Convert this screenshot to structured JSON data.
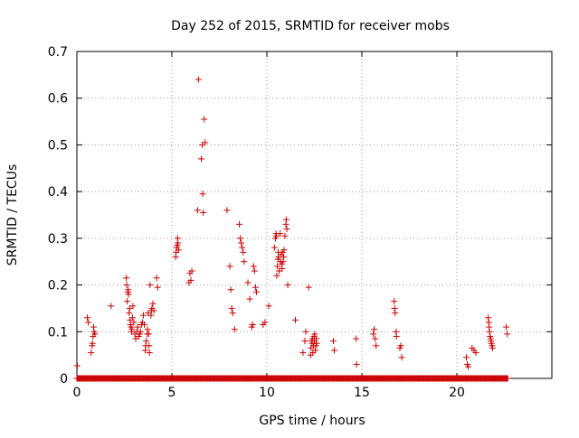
{
  "chart_data": {
    "type": "scatter",
    "title": "Day 252 of 2015, SRMTID for receiver mobs",
    "xlabel": "GPS time / hours",
    "ylabel": "SRMTID / TECUs",
    "xlim": [
      0,
      25
    ],
    "ylim": [
      0,
      0.7
    ],
    "grid": true,
    "marker": "plus",
    "marker_color": "#cc0000",
    "xticks": [
      0,
      5,
      10,
      15,
      20
    ],
    "xtick_labels": [
      "0",
      "5",
      "10",
      "15",
      "20"
    ],
    "yticks": [
      0,
      0.1,
      0.2,
      0.3,
      0.4,
      0.5,
      0.6,
      0.7
    ],
    "ytick_labels": [
      "0",
      "0.1",
      "0.2",
      "0.3",
      "0.4",
      "0.5",
      "0.6",
      "0.7"
    ],
    "baseline": {
      "x_start": 0.0,
      "x_end": 22.7,
      "step": 0.04,
      "y": 0.0
    },
    "points": [
      [
        0.02,
        0.027
      ],
      [
        0.55,
        0.13
      ],
      [
        0.6,
        0.12
      ],
      [
        0.75,
        0.055
      ],
      [
        0.8,
        0.07
      ],
      [
        0.82,
        0.075
      ],
      [
        0.85,
        0.09
      ],
      [
        0.88,
        0.11
      ],
      [
        0.9,
        0.1
      ],
      [
        0.95,
        0.095
      ],
      [
        1.8,
        0.155
      ],
      [
        2.6,
        0.215
      ],
      [
        2.62,
        0.2
      ],
      [
        2.65,
        0.165
      ],
      [
        2.68,
        0.185
      ],
      [
        2.7,
        0.19
      ],
      [
        2.72,
        0.18
      ],
      [
        2.75,
        0.14
      ],
      [
        2.78,
        0.15
      ],
      [
        2.8,
        0.125
      ],
      [
        2.82,
        0.115
      ],
      [
        2.85,
        0.11
      ],
      [
        2.88,
        0.1
      ],
      [
        2.9,
        0.105
      ],
      [
        2.93,
        0.13
      ],
      [
        2.95,
        0.155
      ],
      [
        3.0,
        0.12
      ],
      [
        3.05,
        0.095
      ],
      [
        3.1,
        0.085
      ],
      [
        3.15,
        0.1
      ],
      [
        3.2,
        0.11
      ],
      [
        3.25,
        0.09
      ],
      [
        3.3,
        0.095
      ],
      [
        3.35,
        0.1
      ],
      [
        3.4,
        0.115
      ],
      [
        3.45,
        0.12
      ],
      [
        3.5,
        0.135
      ],
      [
        3.55,
        0.115
      ],
      [
        3.6,
        0.06
      ],
      [
        3.62,
        0.07
      ],
      [
        3.65,
        0.08
      ],
      [
        3.7,
        0.095
      ],
      [
        3.72,
        0.105
      ],
      [
        3.75,
        0.14
      ],
      [
        3.78,
        0.095
      ],
      [
        3.8,
        0.07
      ],
      [
        3.82,
        0.055
      ],
      [
        3.85,
        0.2
      ],
      [
        3.9,
        0.135
      ],
      [
        3.92,
        0.145
      ],
      [
        3.95,
        0.15
      ],
      [
        4.0,
        0.16
      ],
      [
        4.05,
        0.145
      ],
      [
        4.2,
        0.215
      ],
      [
        4.25,
        0.195
      ],
      [
        5.2,
        0.26
      ],
      [
        5.22,
        0.27
      ],
      [
        5.25,
        0.28
      ],
      [
        5.28,
        0.285
      ],
      [
        5.3,
        0.3
      ],
      [
        5.32,
        0.29
      ],
      [
        5.35,
        0.275
      ],
      [
        5.9,
        0.205
      ],
      [
        5.95,
        0.225
      ],
      [
        6.0,
        0.21
      ],
      [
        6.05,
        0.23
      ],
      [
        6.35,
        0.36
      ],
      [
        6.4,
        0.64
      ],
      [
        6.55,
        0.47
      ],
      [
        6.6,
        0.5
      ],
      [
        6.62,
        0.395
      ],
      [
        6.65,
        0.355
      ],
      [
        6.7,
        0.555
      ],
      [
        6.75,
        0.505
      ],
      [
        7.9,
        0.36
      ],
      [
        8.05,
        0.24
      ],
      [
        8.1,
        0.19
      ],
      [
        8.15,
        0.15
      ],
      [
        8.2,
        0.14
      ],
      [
        8.3,
        0.105
      ],
      [
        8.55,
        0.33
      ],
      [
        8.6,
        0.3
      ],
      [
        8.65,
        0.29
      ],
      [
        8.7,
        0.28
      ],
      [
        8.75,
        0.27
      ],
      [
        8.8,
        0.25
      ],
      [
        9.0,
        0.205
      ],
      [
        9.1,
        0.17
      ],
      [
        9.2,
        0.11
      ],
      [
        9.25,
        0.115
      ],
      [
        9.3,
        0.24
      ],
      [
        9.35,
        0.23
      ],
      [
        9.4,
        0.195
      ],
      [
        9.45,
        0.185
      ],
      [
        9.8,
        0.115
      ],
      [
        9.9,
        0.12
      ],
      [
        10.1,
        0.155
      ],
      [
        10.4,
        0.28
      ],
      [
        10.45,
        0.3
      ],
      [
        10.48,
        0.31
      ],
      [
        10.5,
        0.305
      ],
      [
        10.52,
        0.22
      ],
      [
        10.55,
        0.24
      ],
      [
        10.58,
        0.255
      ],
      [
        10.6,
        0.27
      ],
      [
        10.62,
        0.26
      ],
      [
        10.65,
        0.23
      ],
      [
        10.7,
        0.31
      ],
      [
        10.72,
        0.25
      ],
      [
        10.75,
        0.265
      ],
      [
        10.78,
        0.245
      ],
      [
        10.8,
        0.235
      ],
      [
        10.82,
        0.27
      ],
      [
        10.85,
        0.25
      ],
      [
        10.88,
        0.26
      ],
      [
        10.9,
        0.275
      ],
      [
        10.95,
        0.305
      ],
      [
        11.0,
        0.33
      ],
      [
        11.02,
        0.34
      ],
      [
        11.05,
        0.32
      ],
      [
        11.1,
        0.2
      ],
      [
        11.5,
        0.125
      ],
      [
        11.9,
        0.055
      ],
      [
        12.0,
        0.08
      ],
      [
        12.05,
        0.1
      ],
      [
        12.2,
        0.195
      ],
      [
        12.3,
        0.05
      ],
      [
        12.32,
        0.065
      ],
      [
        12.35,
        0.08
      ],
      [
        12.38,
        0.075
      ],
      [
        12.4,
        0.085
      ],
      [
        12.42,
        0.055
      ],
      [
        12.45,
        0.07
      ],
      [
        12.48,
        0.09
      ],
      [
        12.5,
        0.08
      ],
      [
        12.52,
        0.095
      ],
      [
        12.55,
        0.06
      ],
      [
        12.58,
        0.07
      ],
      [
        12.6,
        0.085
      ],
      [
        12.62,
        0.075
      ],
      [
        13.5,
        0.08
      ],
      [
        13.55,
        0.06
      ],
      [
        14.7,
        0.085
      ],
      [
        14.72,
        0.03
      ],
      [
        15.6,
        0.095
      ],
      [
        15.65,
        0.105
      ],
      [
        15.7,
        0.085
      ],
      [
        15.75,
        0.07
      ],
      [
        16.7,
        0.165
      ],
      [
        16.72,
        0.15
      ],
      [
        16.75,
        0.14
      ],
      [
        16.8,
        0.1
      ],
      [
        16.82,
        0.09
      ],
      [
        17.0,
        0.065
      ],
      [
        17.05,
        0.07
      ],
      [
        17.1,
        0.045
      ],
      [
        20.5,
        0.045
      ],
      [
        20.55,
        0.03
      ],
      [
        20.6,
        0.025
      ],
      [
        20.8,
        0.065
      ],
      [
        20.9,
        0.06
      ],
      [
        21.0,
        0.055
      ],
      [
        21.65,
        0.13
      ],
      [
        21.68,
        0.12
      ],
      [
        21.7,
        0.11
      ],
      [
        21.72,
        0.1
      ],
      [
        21.75,
        0.09
      ],
      [
        21.78,
        0.085
      ],
      [
        21.8,
        0.08
      ],
      [
        21.82,
        0.075
      ],
      [
        21.85,
        0.07
      ],
      [
        21.88,
        0.065
      ],
      [
        22.6,
        0.11
      ],
      [
        22.65,
        0.095
      ]
    ]
  }
}
